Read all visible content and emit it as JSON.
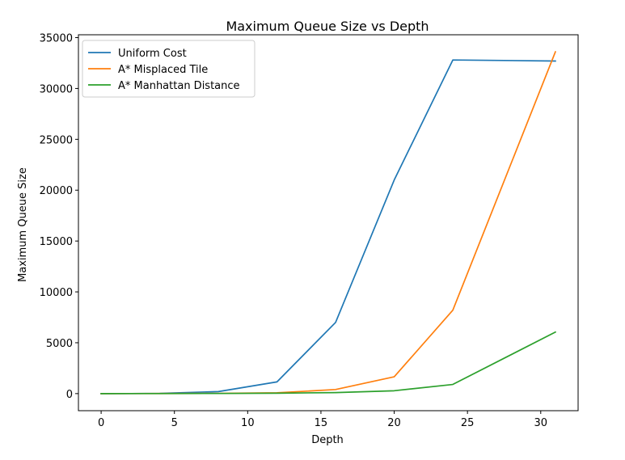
{
  "chart_data": {
    "type": "line",
    "title": "Maximum Queue Size vs Depth",
    "xlabel": "Depth",
    "ylabel": "Maximum Queue Size",
    "xlim": [
      -1.55,
      32.55
    ],
    "ylim": [
      -1680,
      35280
    ],
    "xticks": [
      0,
      5,
      10,
      15,
      20,
      25,
      30
    ],
    "yticks": [
      0,
      5000,
      10000,
      15000,
      20000,
      25000,
      30000,
      35000
    ],
    "grid": false,
    "legend_position": "top-left",
    "series": [
      {
        "name": "Uniform Cost",
        "color": "#1f77b4",
        "x": [
          0,
          2,
          4,
          8,
          12,
          16,
          20,
          24,
          31
        ],
        "y": [
          1,
          5,
          25,
          200,
          1150,
          7000,
          21000,
          32800,
          32700
        ]
      },
      {
        "name": "A* Misplaced Tile",
        "color": "#ff7f0e",
        "x": [
          0,
          2,
          4,
          8,
          12,
          16,
          20,
          24,
          31
        ],
        "y": [
          1,
          3,
          8,
          25,
          80,
          400,
          1650,
          8200,
          33600
        ]
      },
      {
        "name": "A* Manhattan Distance",
        "color": "#2ca02c",
        "x": [
          0,
          2,
          4,
          8,
          12,
          16,
          20,
          24,
          31
        ],
        "y": [
          1,
          3,
          6,
          15,
          40,
          100,
          280,
          900,
          6050
        ]
      }
    ]
  }
}
